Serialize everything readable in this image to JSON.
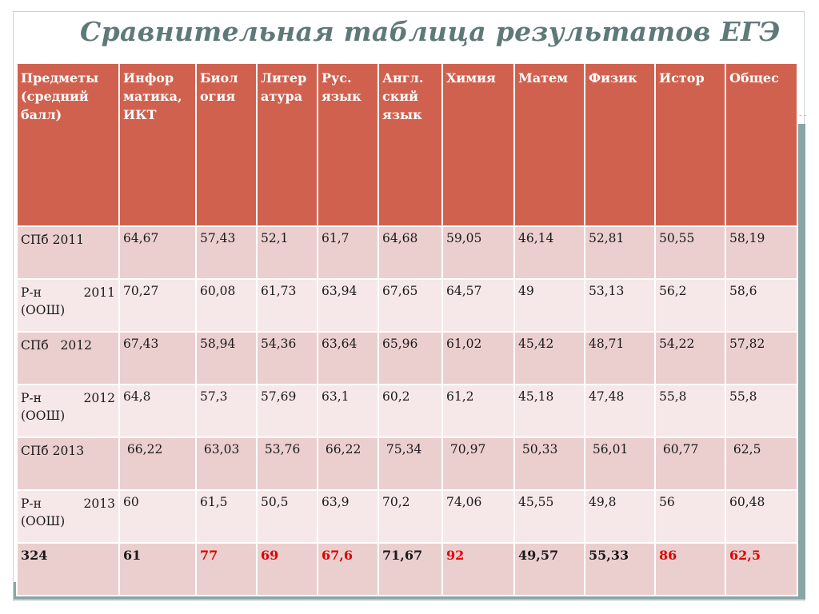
{
  "title": "Сравнительная таблица результатов ЕГЭ",
  "columns": [
    [
      "Предметы",
      "(средний",
      "балл)"
    ],
    [
      "Инфор",
      "матика,",
      "ИКТ"
    ],
    [
      "Биол",
      "огия"
    ],
    [
      "Литер",
      "атура"
    ],
    [
      "Рус.",
      "язык"
    ],
    [
      "Англ.",
      "ский",
      "язык"
    ],
    [
      "Химия"
    ],
    [
      "Матем"
    ],
    [
      "Физик"
    ],
    [
      "Истор"
    ],
    [
      "Общес"
    ]
  ],
  "rows": [
    {
      "label": "СПб 2011",
      "values": [
        "64,67",
        "57,43",
        "52,1",
        "61,7",
        "64,68",
        "59,05",
        "46,14",
        "52,81",
        "50,55",
        "58,19"
      ]
    },
    {
      "label_a": "Р-н",
      "label_b": "2011",
      "label_c": "(ООШ)",
      "values": [
        "70,27",
        "60,08",
        "61,73",
        "63,94",
        "67,65",
        "64,57",
        "49",
        "53,13",
        "56,2",
        "58,6"
      ]
    },
    {
      "label": "СПб   2012",
      "values": [
        "67,43",
        "58,94",
        "54,36",
        "63,64",
        "65,96",
        "61,02",
        "45,42",
        "48,71",
        "54,22",
        "57,82"
      ]
    },
    {
      "label_a": "Р-н",
      "label_b": "2012",
      "label_c": "(ООШ)",
      "values": [
        "64,8",
        "57,3",
        "57,69",
        "63,1",
        "60,2",
        "61,2",
        "45,18",
        "47,48",
        "55,8",
        "55,8"
      ]
    },
    {
      "label": "СПб 2013",
      "values": [
        " 66,22",
        " 63,03",
        " 53,76",
        " 66,22",
        " 75,34",
        " 70,97",
        " 50,33",
        " 56,01",
        " 60,77",
        " 62,5"
      ]
    },
    {
      "label_a": "Р-н",
      "label_b": "2013",
      "label_c": "(ООШ)",
      "values": [
        "60",
        "61,5",
        "50,5",
        "63,9",
        "70,2",
        "74,06",
        "45,55",
        "49,8",
        "56",
        "60,48"
      ]
    }
  ],
  "total": {
    "label": "324",
    "values": [
      "61",
      "77",
      "69",
      "67,6",
      "71,67",
      "92",
      "49,57",
      "55,33",
      "86",
      "62,5"
    ],
    "highlight_color": "#e00000"
  }
}
